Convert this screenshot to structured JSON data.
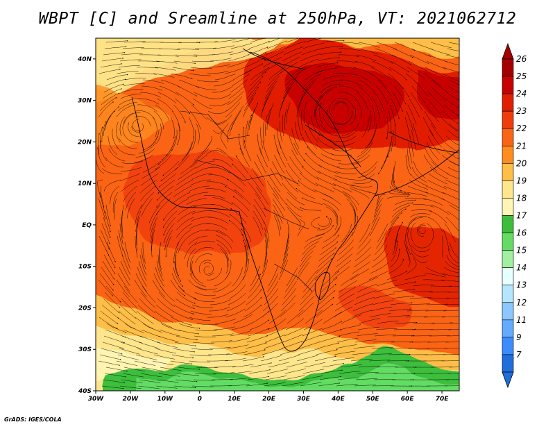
{
  "title": "WBPT [C] and Sreamline at 250hPa, VT: 2021062712",
  "footer": "GrADS: IGES/COLA",
  "map": {
    "lon_range": [
      -30,
      75
    ],
    "lat_range": [
      -40,
      45
    ],
    "lon_ticks": [
      {
        "value": -30,
        "label": "30W"
      },
      {
        "value": -20,
        "label": "20W"
      },
      {
        "value": -10,
        "label": "10W"
      },
      {
        "value": 0,
        "label": "0"
      },
      {
        "value": 10,
        "label": "10E"
      },
      {
        "value": 20,
        "label": "20E"
      },
      {
        "value": 30,
        "label": "30E"
      },
      {
        "value": 40,
        "label": "40E"
      },
      {
        "value": 50,
        "label": "50E"
      },
      {
        "value": 60,
        "label": "60E"
      },
      {
        "value": 70,
        "label": "70E"
      }
    ],
    "lat_ticks": [
      {
        "value": 40,
        "label": "40N"
      },
      {
        "value": 30,
        "label": "30N"
      },
      {
        "value": 20,
        "label": "20N"
      },
      {
        "value": 10,
        "label": "10N"
      },
      {
        "value": 0,
        "label": "EQ"
      },
      {
        "value": -10,
        "label": "10S"
      },
      {
        "value": -20,
        "label": "20S"
      },
      {
        "value": -30,
        "label": "30S"
      },
      {
        "value": -40,
        "label": "40S"
      }
    ]
  },
  "colorbar": {
    "levels": [
      {
        "label": "26",
        "color": "#a50000"
      },
      {
        "label": "25",
        "color": "#c80000"
      },
      {
        "label": "24",
        "color": "#e11e00"
      },
      {
        "label": "23",
        "color": "#f03c0a"
      },
      {
        "label": "22",
        "color": "#fa6414"
      },
      {
        "label": "21",
        "color": "#ff8c1e"
      },
      {
        "label": "20",
        "color": "#ffbe46"
      },
      {
        "label": "19",
        "color": "#ffe68c"
      },
      {
        "label": "18",
        "color": "#fff5b4"
      },
      {
        "label": "17",
        "color": "#3cbe3c"
      },
      {
        "label": "16",
        "color": "#64dc64"
      },
      {
        "label": "15",
        "color": "#a0f0a0"
      },
      {
        "label": "14",
        "color": "#e6ffff"
      },
      {
        "label": "13",
        "color": "#b4e6ff"
      },
      {
        "label": "12",
        "color": "#8cc8ff"
      },
      {
        "label": "11",
        "color": "#64aaff"
      },
      {
        "label": "9",
        "color": "#3c8cff"
      },
      {
        "label": "7",
        "color": "#1e6edc"
      }
    ],
    "top_arrow_color": "#a50000",
    "bottom_arrow_color": "#1e6edc"
  }
}
